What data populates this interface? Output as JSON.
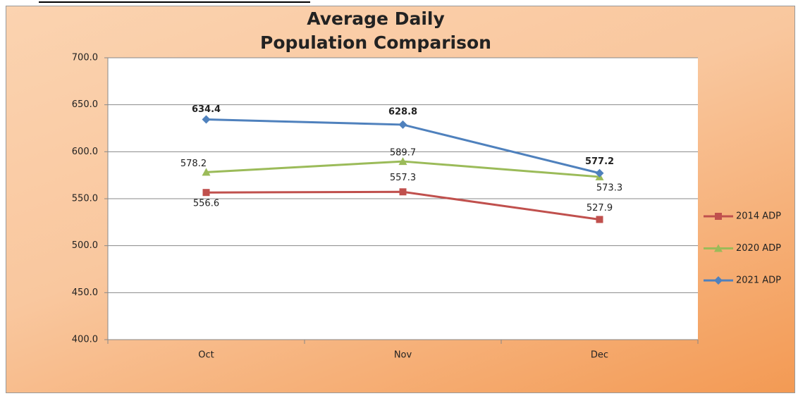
{
  "chart_data": {
    "type": "line",
    "title": "Average Daily Population Comparison",
    "categories": [
      "Oct",
      "Nov",
      "Dec"
    ],
    "series": [
      {
        "name": "2014 ADP",
        "color": "#c0504d",
        "marker": "square",
        "values": [
          556.6,
          557.3,
          527.9
        ]
      },
      {
        "name": "2020 ADP",
        "color": "#9bbb59",
        "marker": "triangle",
        "values": [
          578.2,
          589.7,
          573.3
        ]
      },
      {
        "name": "2021 ADP",
        "color": "#4f81bd",
        "marker": "diamond",
        "values": [
          634.4,
          628.8,
          577.2
        ]
      }
    ],
    "ylim": [
      400,
      700
    ],
    "yticks": [
      {
        "value": 400,
        "label": "400.0"
      },
      {
        "value": 450,
        "label": "450.0"
      },
      {
        "value": 500,
        "label": "500.0"
      },
      {
        "value": 550,
        "label": "550.0"
      },
      {
        "value": 600,
        "label": "600.0"
      },
      {
        "value": 650,
        "label": "650.0"
      },
      {
        "value": 700,
        "label": "700.0"
      }
    ],
    "grid": true,
    "legend": "right"
  }
}
